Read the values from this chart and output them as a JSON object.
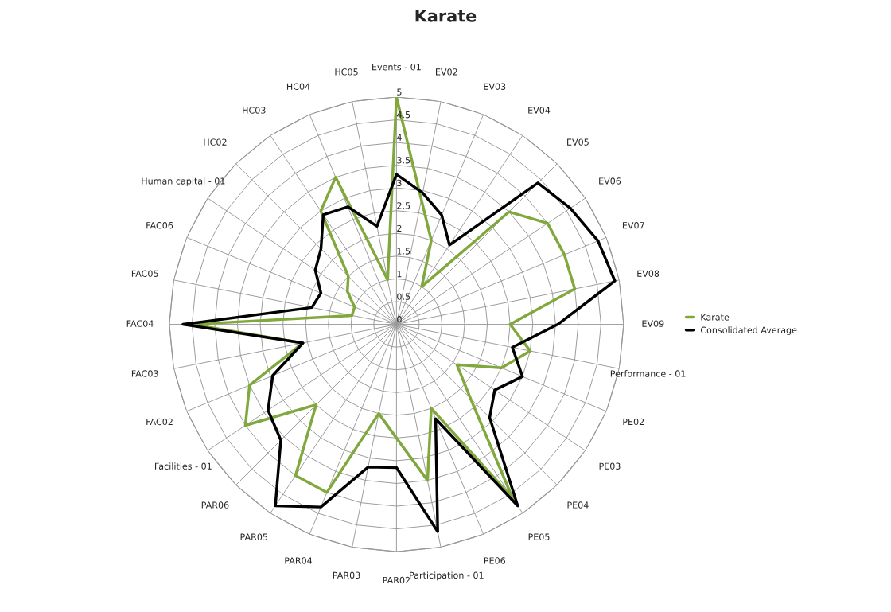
{
  "chart_data": {
    "type": "radar",
    "title": "Karate",
    "categories": [
      "Events - 01",
      "EV02",
      "EV03",
      "EV04",
      "EV05",
      "EV06",
      "EV07",
      "EV08",
      "EV09",
      "Performance - 01",
      "PE02",
      "PE03",
      "PE04",
      "PE05",
      "PE06",
      "Participation - 01",
      "PAR02",
      "PAR03",
      "PAR04",
      "PAR05",
      "PAR06",
      "Facilities - 01",
      "FAC02",
      "FAC03",
      "FAC04",
      "FAC05",
      "FAC06",
      "Human capital - 01",
      "HC02",
      "HC03",
      "HC04",
      "HC05"
    ],
    "series": [
      {
        "name": "Karate",
        "color": "#80a83c",
        "values": [
          5,
          2.8,
          2.0,
          1.0,
          3.5,
          4.0,
          4.0,
          4.0,
          2.5,
          3.0,
          2.5,
          1.6,
          2.3,
          4.6,
          2.0,
          3.5,
          2.5,
          2.0,
          4.0,
          4.0,
          2.5,
          4.0,
          3.5,
          2.1,
          4.5,
          1.0,
          1.0,
          1.3,
          1.5,
          3.0,
          3.5,
          1.0
        ]
      },
      {
        "name": "Consolidated Average",
        "color": "#000000",
        "values": [
          3.3,
          2.95,
          2.6,
          2.1,
          4.4,
          4.6,
          4.8,
          4.9,
          3.55,
          2.6,
          3.0,
          2.6,
          2.9,
          4.8,
          2.25,
          4.65,
          3.15,
          3.2,
          4.35,
          4.8,
          3.6,
          3.4,
          2.95,
          2.1,
          4.7,
          1.9,
          1.8,
          2.15,
          2.35,
          2.9,
          2.8,
          2.2
        ]
      }
    ],
    "ylim": [
      0,
      5
    ],
    "yticks": [
      0,
      0.5,
      1,
      1.5,
      2,
      2.5,
      3,
      3.5,
      4,
      4.5,
      5
    ],
    "grid": true,
    "legend": "right",
    "marker": "none",
    "line_style": "solid"
  }
}
